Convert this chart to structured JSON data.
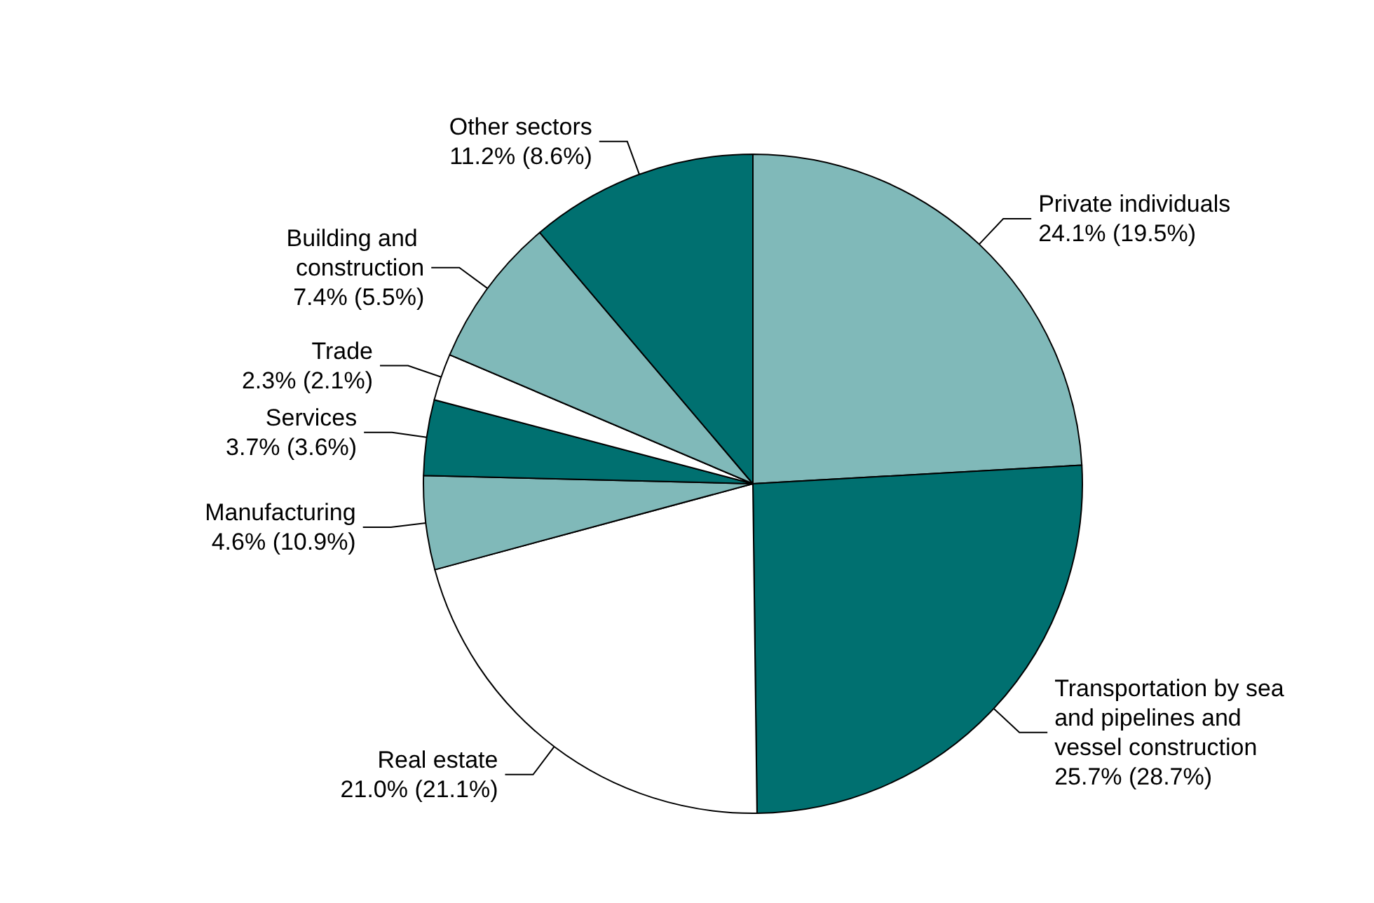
{
  "chart_data": {
    "type": "pie",
    "categories": [
      "Private individuals",
      "Transportation by sea and pipelines and vessel construction",
      "Real estate",
      "Manufacturing",
      "Services",
      "Trade",
      "Building and construction",
      "Other sectors"
    ],
    "values": [
      24.1,
      25.7,
      21.0,
      4.6,
      3.7,
      2.3,
      7.4,
      11.2
    ],
    "value_labels": [
      "24.1% (19.5%)",
      "25.7% (28.7%)",
      "21.0% (21.1%)",
      "4.6% (10.9%)",
      "3.7% (3.6%)",
      "2.3% (2.1%)",
      "7.4% (5.5%)",
      "11.2% (8.6%)"
    ],
    "colors": [
      "#80b9b9",
      "#007070",
      "#ffffff",
      "#80b9b9",
      "#007070",
      "#ffffff",
      "#80b9b9",
      "#007070"
    ],
    "legend": false
  }
}
